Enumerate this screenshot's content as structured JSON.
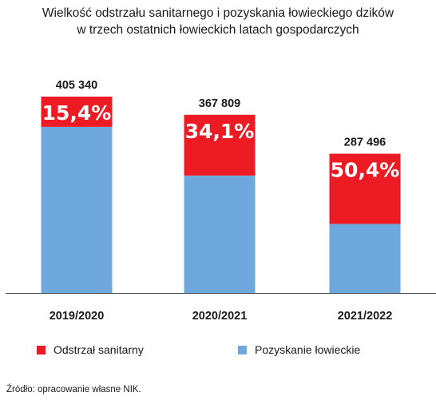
{
  "title": {
    "line1": "Wielkość odstrzału sanitarnego i pozyskania łowieckiego dzików",
    "line2": "w trzech ostatnich łowieckich latach gospodarczych"
  },
  "colors": {
    "sanitary": "#ed1c24",
    "hunting": "#6fa8dc",
    "axis": "#555555"
  },
  "chart_data": {
    "type": "bar",
    "stacked": true,
    "categories": [
      "2019/2020",
      "2020/2021",
      "2021/2022"
    ],
    "totals": [
      405340,
      367809,
      287496
    ],
    "total_labels": [
      "405 340",
      "367 809",
      "287 496"
    ],
    "share_labels": [
      "15,4%",
      "34,1%",
      "50,4%"
    ],
    "series": [
      {
        "name": "Pozyskanie łowieckie",
        "values": [
          342913,
          242386,
          142598
        ]
      },
      {
        "name": "Odstrzał sanitarny",
        "values": [
          62427,
          125423,
          144898
        ]
      }
    ],
    "ylim": [
      0,
      405340
    ],
    "grid": false,
    "legend_position": "bottom"
  },
  "legend": {
    "sanitary_label": "Odstrzał sanitarny",
    "hunting_label": "Pozyskanie łowieckie"
  },
  "source": "Źródło: opracowanie własne NIK."
}
